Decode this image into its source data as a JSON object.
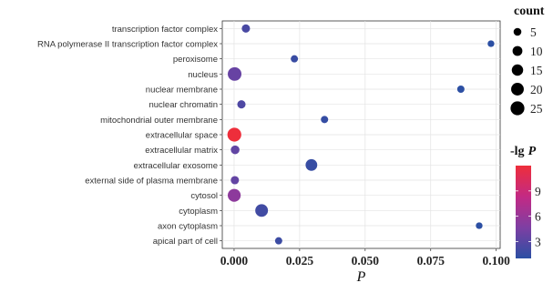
{
  "chart_data": {
    "type": "scatter",
    "title": "",
    "xlabel": "P",
    "ylabel": "",
    "xlim": [
      -0.0045,
      0.1015
    ],
    "x_ticks": [
      0.0,
      0.025,
      0.05,
      0.075,
      0.1
    ],
    "x_tick_labels": [
      "0.000",
      "0.025",
      "0.050",
      "0.075",
      "0.100"
    ],
    "grid": true,
    "categories": [
      "transcription factor complex",
      "RNA polymerase II transcription factor complex",
      "peroxisome",
      "nucleus",
      "nuclear membrane",
      "nuclear chromatin",
      "mitochondrial outer membrane",
      "extracellular space",
      "extracellular matrix",
      "extracellular exosome",
      "external side of plasma membrane",
      "cytosol",
      "cytoplasm",
      "axon cytoplasm",
      "apical part of cell"
    ],
    "points": [
      {
        "category": "transcription factor complex",
        "p": 0.0045,
        "count": 6,
        "neg_lg_p": 2.35
      },
      {
        "category": "RNA polymerase II transcription factor complex",
        "p": 0.098,
        "count": 3,
        "neg_lg_p": 1.01
      },
      {
        "category": "peroxisome",
        "p": 0.023,
        "count": 4,
        "neg_lg_p": 1.64
      },
      {
        "category": "nucleus",
        "p": 0.0002,
        "count": 24,
        "neg_lg_p": 3.7
      },
      {
        "category": "nuclear membrane",
        "p": 0.0865,
        "count": 4,
        "neg_lg_p": 1.06
      },
      {
        "category": "nuclear chromatin",
        "p": 0.0028,
        "count": 6,
        "neg_lg_p": 2.55
      },
      {
        "category": "mitochondrial outer membrane",
        "p": 0.0345,
        "count": 4,
        "neg_lg_p": 1.46
      },
      {
        "category": "extracellular space",
        "p": 0.0001,
        "count": 25,
        "neg_lg_p": 12.0
      },
      {
        "category": "extracellular matrix",
        "p": 0.0004,
        "count": 7,
        "neg_lg_p": 3.4
      },
      {
        "category": "extracellular exosome",
        "p": 0.0295,
        "count": 16,
        "neg_lg_p": 1.53
      },
      {
        "category": "external side of plasma membrane",
        "p": 0.0003,
        "count": 6,
        "neg_lg_p": 3.5
      },
      {
        "category": "cytosol",
        "p": 5e-05,
        "count": 21,
        "neg_lg_p": 5.5
      },
      {
        "category": "cytoplasm",
        "p": 0.0105,
        "count": 20,
        "neg_lg_p": 1.98
      },
      {
        "category": "axon cytoplasm",
        "p": 0.0935,
        "count": 3,
        "neg_lg_p": 1.03
      },
      {
        "category": "apical part of cell",
        "p": 0.017,
        "count": 4,
        "neg_lg_p": 1.77
      }
    ],
    "size_legend": {
      "title": "count",
      "values": [
        5,
        10,
        15,
        20,
        25
      ],
      "labels": [
        "5",
        "10",
        "15",
        "20",
        "25"
      ]
    },
    "color_legend": {
      "title_prefix": "-lg",
      "title_var": "P",
      "min": 1,
      "max": 12,
      "ticks": [
        3,
        6,
        9
      ],
      "tick_labels": [
        "3",
        "6",
        "9"
      ],
      "colors": [
        "#2b4fa3",
        "#7d3fa3",
        "#c22a85",
        "#ee2e3b"
      ]
    },
    "legend_position": "right"
  }
}
